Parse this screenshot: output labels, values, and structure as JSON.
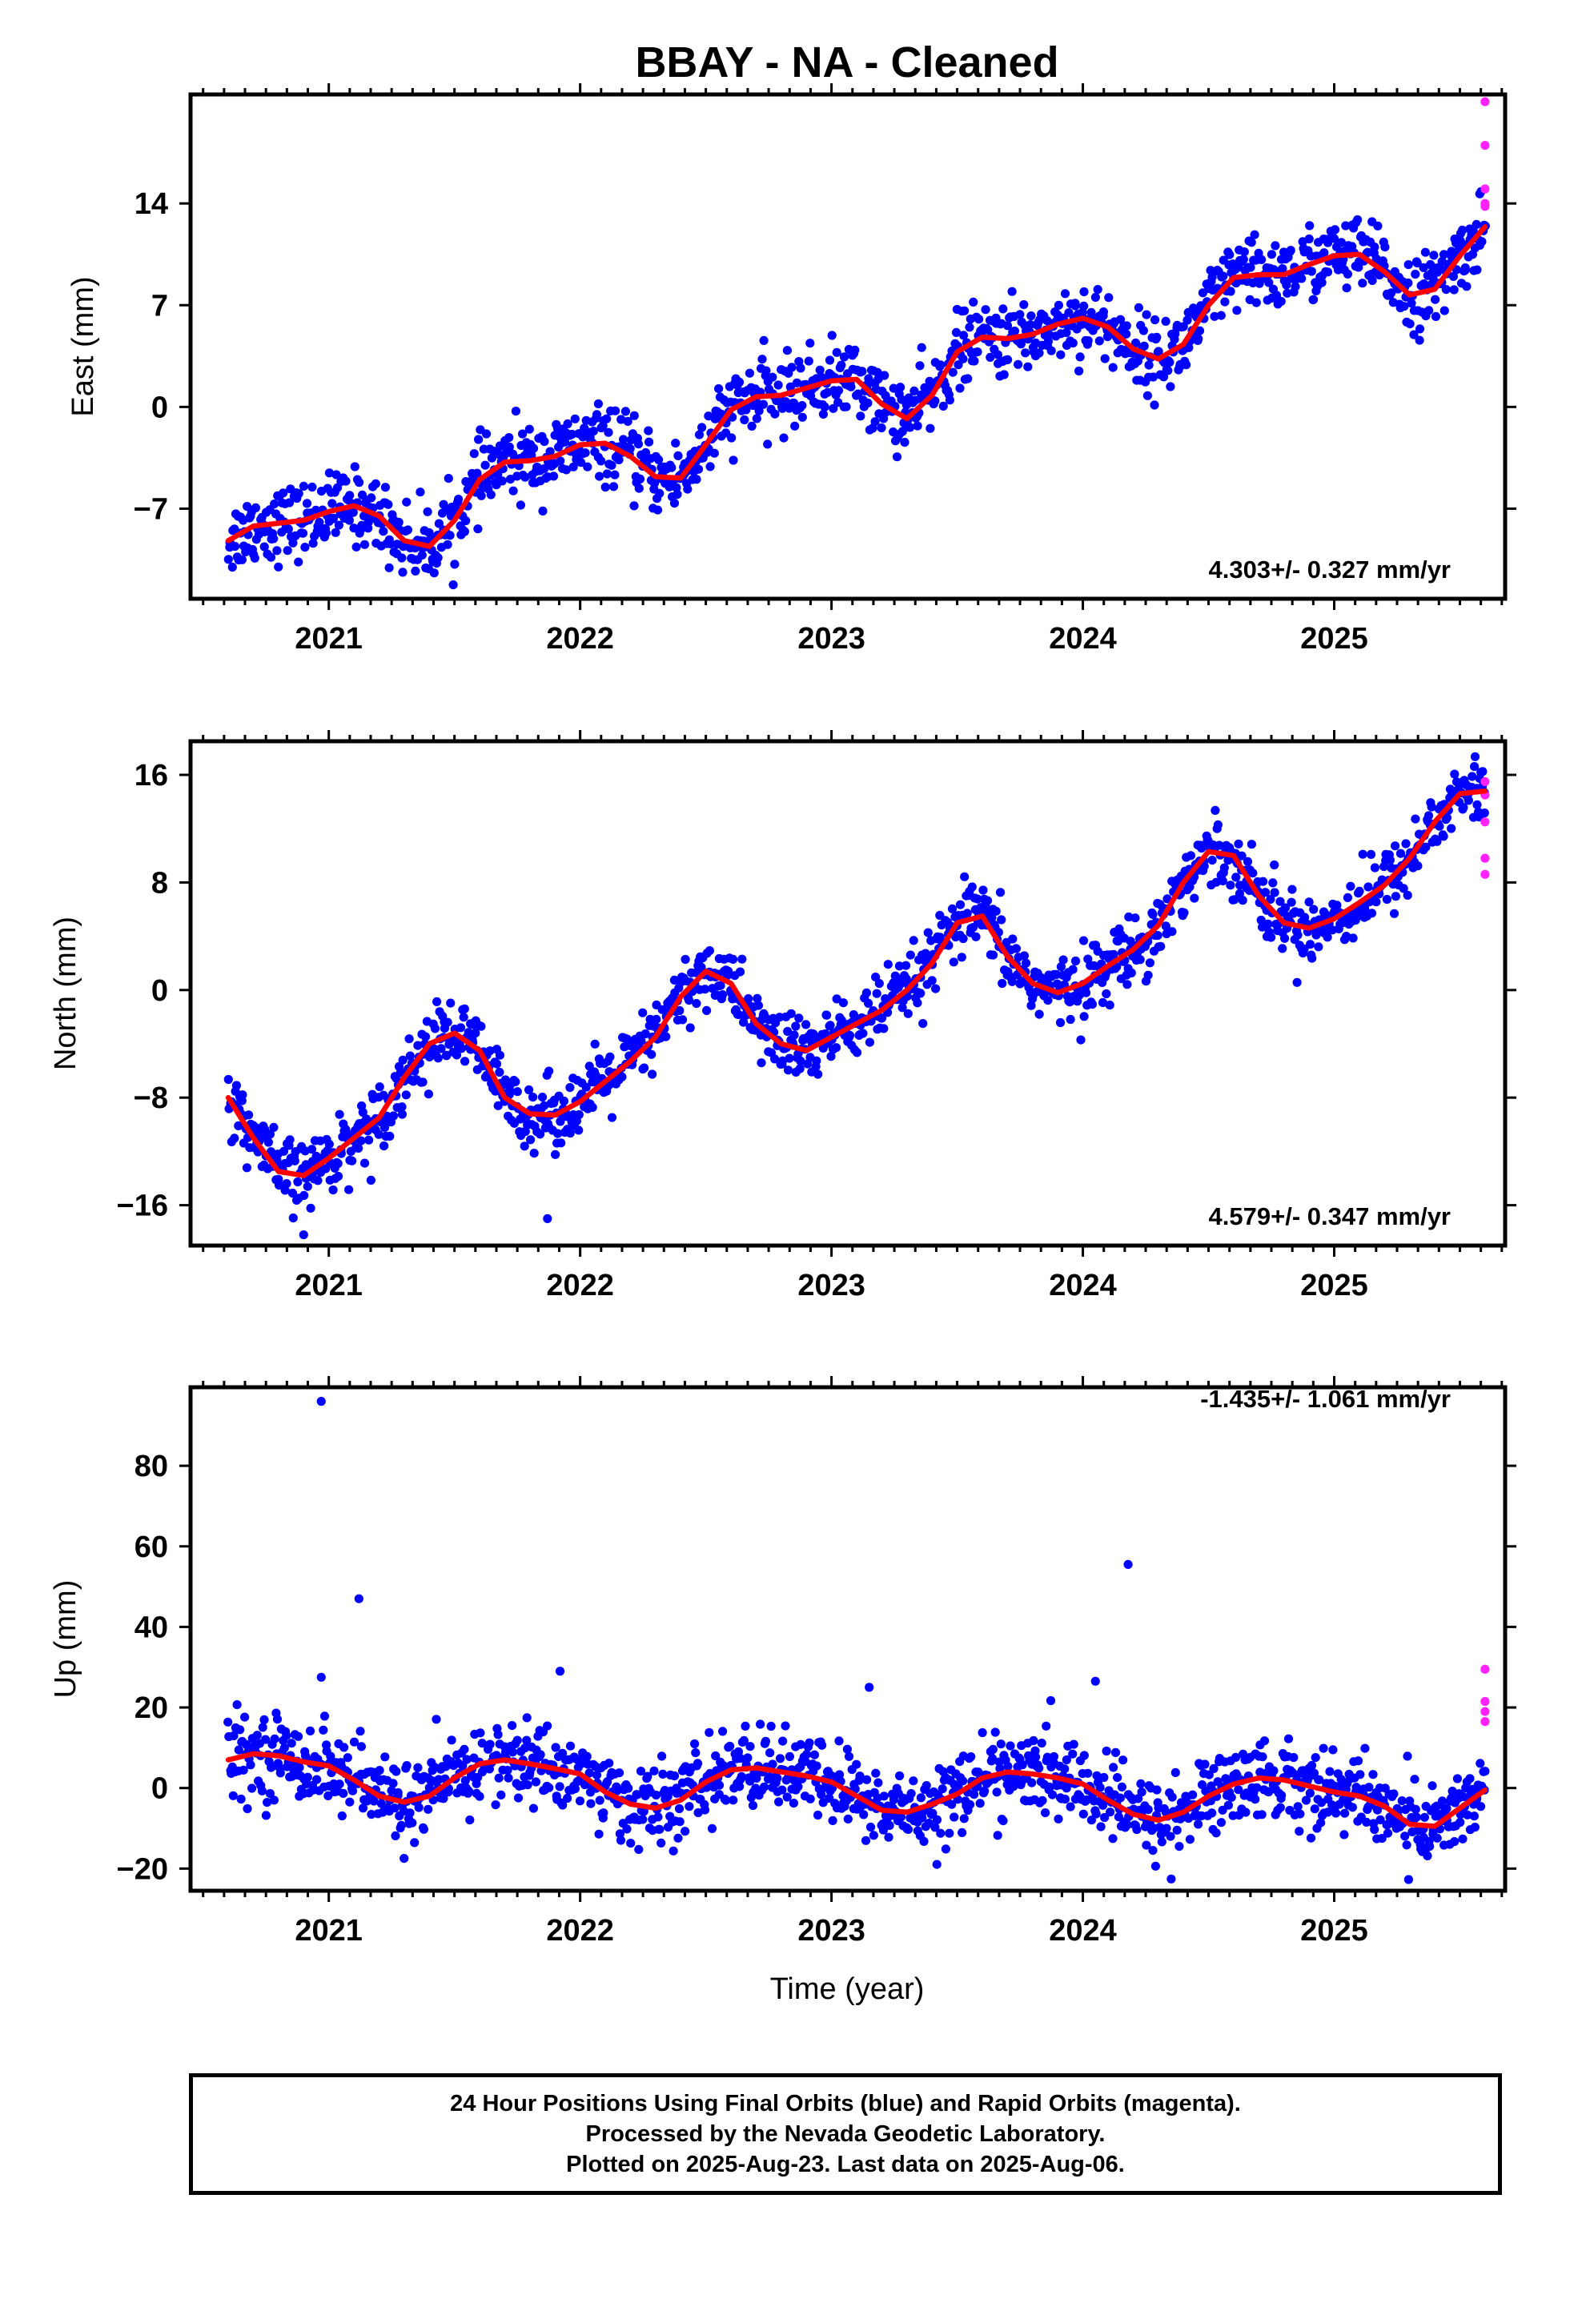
{
  "title": "BBAY  - NA - Cleaned",
  "xlabel": "Time (year)",
  "caption": [
    "24 Hour Positions Using Final Orbits (blue) and Rapid Orbits (magenta).",
    "Processed by the Nevada Geodetic Laboratory.",
    "Plotted on 2025-Aug-23. Last data on 2025-Aug-06."
  ],
  "colors": {
    "final_orbits": "#0000ff",
    "rapid_orbits": "#ff22ff",
    "model_fit": "#ff0000"
  },
  "chart_data": [
    {
      "type": "scatter",
      "name": "east",
      "ylabel": "East (mm)",
      "rate_label": "4.303+/- 0.327 mm/yr",
      "xlim": [
        2020.45,
        2025.68
      ],
      "ylim": [
        -13.2,
        21.5
      ],
      "yticks": [
        -7,
        0,
        7,
        14
      ],
      "ytick_labels": [
        "−7",
        "0",
        "7",
        "14"
      ],
      "xticks": [
        2021,
        2022,
        2023,
        2024,
        2025
      ],
      "xtick_labels": [
        "2021",
        "2022",
        "2023",
        "2024",
        "2025"
      ],
      "model": {
        "x": [
          2020.6,
          2020.7,
          2020.8,
          2020.9,
          2021.0,
          2021.1,
          2021.2,
          2021.3,
          2021.4,
          2021.5,
          2021.6,
          2021.7,
          2021.8,
          2021.9,
          2022.0,
          2022.1,
          2022.2,
          2022.3,
          2022.4,
          2022.5,
          2022.6,
          2022.7,
          2022.8,
          2022.9,
          2023.0,
          2023.1,
          2023.2,
          2023.3,
          2023.4,
          2023.5,
          2023.6,
          2023.7,
          2023.8,
          2023.9,
          2024.0,
          2024.1,
          2024.2,
          2024.3,
          2024.4,
          2024.5,
          2024.6,
          2024.7,
          2024.8,
          2024.9,
          2025.0,
          2025.1,
          2025.2,
          2025.3,
          2025.4,
          2025.5,
          2025.6
        ],
        "y": [
          -9.2,
          -8.2,
          -8.0,
          -7.8,
          -7.2,
          -6.8,
          -7.5,
          -9.2,
          -9.6,
          -7.8,
          -5.0,
          -3.8,
          -3.7,
          -3.4,
          -2.6,
          -2.5,
          -3.4,
          -4.8,
          -4.9,
          -2.6,
          -0.2,
          0.7,
          0.8,
          1.3,
          1.8,
          1.9,
          0.2,
          -0.8,
          0.8,
          3.8,
          4.8,
          4.7,
          5.0,
          5.7,
          6.1,
          5.5,
          4.0,
          3.3,
          4.3,
          7.0,
          8.9,
          9.1,
          9.1,
          9.8,
          10.4,
          10.5,
          9.3,
          7.7,
          8.1,
          10.4,
          12.4
        ]
      },
      "model_points": [
        [
          2020.6,
          -9.2
        ],
        [
          2020.75,
          -8.0
        ],
        [
          2020.9,
          -7.8
        ],
        [
          2021.05,
          -6.8
        ],
        [
          2021.2,
          -7.5
        ],
        [
          2021.35,
          -9.6
        ],
        [
          2021.5,
          -7.8
        ],
        [
          2021.65,
          -4.4
        ],
        [
          2021.8,
          -3.7
        ],
        [
          2021.95,
          -3.1
        ],
        [
          2022.1,
          -2.5
        ],
        [
          2022.25,
          -4.2
        ],
        [
          2022.35,
          -5.1
        ],
        [
          2022.5,
          -2.6
        ],
        [
          2022.65,
          0.3
        ],
        [
          2022.8,
          0.8
        ],
        [
          2022.95,
          1.6
        ],
        [
          2023.05,
          1.9
        ],
        [
          2023.2,
          0.2
        ],
        [
          2023.33,
          -1.0
        ],
        [
          2023.45,
          1.8
        ],
        [
          2023.6,
          4.8
        ],
        [
          2023.75,
          4.7
        ],
        [
          2023.9,
          5.7
        ],
        [
          2024.05,
          5.9
        ],
        [
          2024.2,
          4.0
        ],
        [
          2024.3,
          3.3
        ],
        [
          2024.45,
          5.5
        ],
        [
          2024.6,
          8.9
        ],
        [
          2024.75,
          9.1
        ],
        [
          2024.9,
          9.8
        ],
        [
          2025.05,
          10.5
        ],
        [
          2025.2,
          9.3
        ],
        [
          2025.3,
          7.7
        ],
        [
          2025.4,
          8.1
        ],
        [
          2025.5,
          10.4
        ],
        [
          2025.6,
          12.4
        ]
      ],
      "final_orbits": {
        "trend_mm_per_yr": 4.303,
        "count": 1300
      },
      "rapid_orbits": {
        "x": [
          2025.6,
          2025.6,
          2025.6,
          2025.6,
          2025.6
        ],
        "y": [
          21.0,
          18.0,
          15.0,
          13.8,
          14.0
        ]
      },
      "outliers": []
    },
    {
      "type": "scatter",
      "name": "north",
      "ylabel": "North (mm)",
      "rate_label": "4.579+/- 0.347 mm/yr",
      "xlim": [
        2020.45,
        2025.68
      ],
      "ylim": [
        -19,
        18.5
      ],
      "yticks": [
        -16,
        -8,
        0,
        8,
        16
      ],
      "ytick_labels": [
        "−16",
        "−8",
        "0",
        "8",
        "16"
      ],
      "xticks": [
        2021,
        2022,
        2023,
        2024,
        2025
      ],
      "xtick_labels": [
        "2021",
        "2022",
        "2023",
        "2024",
        "2025"
      ],
      "model": {
        "x": [
          2020.6,
          2020.7,
          2020.8,
          2020.9,
          2021.0,
          2021.1,
          2021.2,
          2021.3,
          2021.4,
          2021.5,
          2021.6,
          2021.7,
          2021.8,
          2021.9,
          2022.0,
          2022.1,
          2022.2,
          2022.3,
          2022.4,
          2022.5,
          2022.6,
          2022.7,
          2022.8,
          2022.9,
          2023.0,
          2023.1,
          2023.2,
          2023.3,
          2023.4,
          2023.5,
          2023.6,
          2023.7,
          2023.8,
          2023.9,
          2024.0,
          2024.1,
          2024.2,
          2024.3,
          2024.4,
          2024.5,
          2024.6,
          2024.7,
          2024.8,
          2024.9,
          2025.0,
          2025.1,
          2025.2,
          2025.3,
          2025.4,
          2025.5,
          2025.6
        ],
        "y": [
          -8.0,
          -11.0,
          -13.5,
          -13.8,
          -12.5,
          -11.0,
          -9.5,
          -6.5,
          -4.0,
          -3.2,
          -4.5,
          -8.0,
          -9.2,
          -9.3,
          -8.3,
          -6.8,
          -5.3,
          -3.5,
          -0.5,
          1.4,
          0.5,
          -2.5,
          -4.0,
          -4.5,
          -3.5,
          -2.5,
          -1.5,
          0.0,
          2.0,
          5.0,
          5.5,
          2.5,
          0.5,
          -0.2,
          0.5,
          1.8,
          3.0,
          4.8,
          8.0,
          10.3,
          10.0,
          7.0,
          5.0,
          4.6,
          5.3,
          6.5,
          7.8,
          9.8,
          12.5,
          14.6,
          14.8
        ]
      },
      "final_orbits": {
        "trend_mm_per_yr": 4.579,
        "count": 1300
      },
      "rapid_orbits": {
        "x": [
          2025.6,
          2025.6,
          2025.6,
          2025.6,
          2025.6
        ],
        "y": [
          15.5,
          14.5,
          12.5,
          9.8,
          8.6
        ]
      },
      "outliers": [
        {
          "x": [
            2020.9
          ],
          "y": [
            -18.2
          ]
        },
        {
          "x": [
            2021.87
          ],
          "y": [
            -17.0
          ]
        }
      ]
    },
    {
      "type": "scatter",
      "name": "up",
      "ylabel": "Up (mm)",
      "rate_label": "-1.435+/- 1.061 mm/yr",
      "xlim": [
        2020.45,
        2025.68
      ],
      "ylim": [
        -25.5,
        99.5
      ],
      "yticks": [
        -20,
        0,
        20,
        40,
        60,
        80
      ],
      "ytick_labels": [
        "−20",
        "0",
        "20",
        "40",
        "60",
        "80"
      ],
      "xticks": [
        2021,
        2022,
        2023,
        2024,
        2025
      ],
      "xtick_labels": [
        "2021",
        "2022",
        "2023",
        "2024",
        "2025"
      ],
      "model": {
        "x": [
          2020.6,
          2020.7,
          2020.8,
          2020.9,
          2021.0,
          2021.1,
          2021.2,
          2021.3,
          2021.4,
          2021.5,
          2021.6,
          2021.7,
          2021.8,
          2021.9,
          2022.0,
          2022.1,
          2022.2,
          2022.3,
          2022.4,
          2022.5,
          2022.6,
          2022.7,
          2022.8,
          2022.9,
          2023.0,
          2023.1,
          2023.2,
          2023.3,
          2023.4,
          2023.5,
          2023.6,
          2023.7,
          2023.8,
          2023.9,
          2024.0,
          2024.1,
          2024.2,
          2024.3,
          2024.4,
          2024.5,
          2024.6,
          2024.7,
          2024.8,
          2024.9,
          2025.0,
          2025.1,
          2025.2,
          2025.3,
          2025.4,
          2025.5,
          2025.6
        ],
        "y": [
          7.0,
          8.5,
          8.0,
          6.5,
          5.5,
          2.0,
          -2.0,
          -3.5,
          -2.0,
          2.5,
          6.0,
          7.0,
          6.0,
          4.8,
          3.5,
          -1.0,
          -4.0,
          -5.0,
          -3.0,
          1.5,
          4.5,
          5.0,
          4.0,
          3.0,
          1.5,
          -2.0,
          -5.5,
          -6.0,
          -4.0,
          -1.5,
          2.5,
          4.0,
          3.5,
          2.5,
          1.0,
          -3.0,
          -6.5,
          -8.0,
          -6.0,
          -2.0,
          1.0,
          2.5,
          2.0,
          0.5,
          -1.0,
          -2.0,
          -4.5,
          -9.0,
          -9.5,
          -5.0,
          -0.5
        ]
      },
      "final_orbits": {
        "trend_mm_per_yr": -1.435,
        "count": 1300
      },
      "rapid_orbits": {
        "x": [
          2025.6,
          2025.6,
          2025.6,
          2025.6
        ],
        "y": [
          29.5,
          21.5,
          19.0,
          16.5
        ]
      },
      "outliers": [
        {
          "x": [
            2020.97
          ],
          "y": [
            96.0
          ]
        },
        {
          "x": [
            2021.12
          ],
          "y": [
            47.0
          ]
        },
        {
          "x": [
            2024.18
          ],
          "y": [
            55.5
          ]
        },
        {
          "x": [
            2020.97
          ],
          "y": [
            27.5
          ]
        },
        {
          "x": [
            2021.92
          ],
          "y": [
            29.0
          ]
        },
        {
          "x": [
            2023.15
          ],
          "y": [
            25.0
          ]
        },
        {
          "x": [
            2024.05
          ],
          "y": [
            26.5
          ]
        }
      ]
    }
  ]
}
